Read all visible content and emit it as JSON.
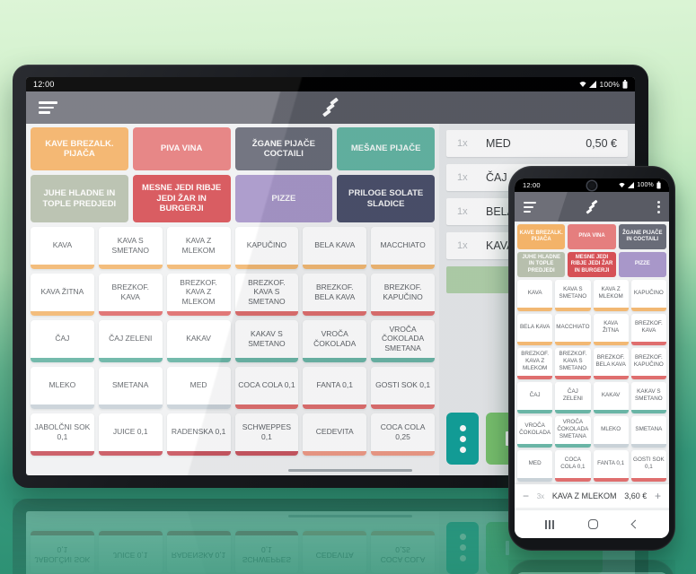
{
  "scene": {
    "background_top": "#d9f4d3",
    "background_bottom": "#2c8f72"
  },
  "colors": {
    "orange": "#f2b873",
    "red": "#df6e6e",
    "darkred": "#c95660",
    "salmon": "#ef9a86",
    "teal": "#6ab5a6",
    "gray": "#c9d2d8"
  },
  "tablet": {
    "status": {
      "time": "12:00",
      "battery": "100%"
    },
    "categories": [
      {
        "label": "KAVE BREZALK. PIJAČA",
        "color": "#f3b369"
      },
      {
        "label": "PIVA VINA",
        "color": "#e57e7e"
      },
      {
        "label": "ŽGANE PIJAČE COCTAILI",
        "color": "#696c78"
      },
      {
        "label": "MEŠANE PIJAČE",
        "color": "#64b6a4"
      },
      {
        "label": "JUHE HLADNE IN TOPLE PREDJEDI",
        "color": "#b7bfad"
      },
      {
        "label": "MESNE JEDI RIBJE JEDI ŽAR IN BURGERJI",
        "color": "#d65156"
      },
      {
        "label": "PIZZE",
        "color": "#a897c9"
      },
      {
        "label": "PRILOGE SOLATE SLADICE",
        "color": "#4b506b"
      }
    ],
    "items": [
      {
        "label": "KAVA",
        "strip": "orange"
      },
      {
        "label": "KAVA S SMETANO",
        "strip": "orange"
      },
      {
        "label": "KAVA Z MLEKOM",
        "strip": "orange"
      },
      {
        "label": "KAPUČINO",
        "strip": "orange"
      },
      {
        "label": "BELA KAVA",
        "strip": "orange"
      },
      {
        "label": "MACCHIATO",
        "strip": "orange"
      },
      {
        "label": "KAVA ŽITNA",
        "strip": "orange"
      },
      {
        "label": "BREZKOF. KAVA",
        "strip": "red"
      },
      {
        "label": "BREZKOF. KAVA Z MLEKOM",
        "strip": "red"
      },
      {
        "label": "BREZKOF. KAVA S SMETANO",
        "strip": "red"
      },
      {
        "label": "BREZKOF. BELA KAVA",
        "strip": "red"
      },
      {
        "label": "BREZKOF. KAPUČINO",
        "strip": "red"
      },
      {
        "label": "ČAJ",
        "strip": "teal"
      },
      {
        "label": "ČAJ ZELENI",
        "strip": "teal"
      },
      {
        "label": "KAKAV",
        "strip": "teal"
      },
      {
        "label": "KAKAV S SMETANO",
        "strip": "teal"
      },
      {
        "label": "VROČA ČOKOLADA",
        "strip": "teal"
      },
      {
        "label": "VROČA ČOKOLADA SMETANA",
        "strip": "teal"
      },
      {
        "label": "MLEKO",
        "strip": "gray"
      },
      {
        "label": "SMETANA",
        "strip": "gray"
      },
      {
        "label": "MED",
        "strip": "gray"
      },
      {
        "label": "COCA COLA 0,1",
        "strip": "red"
      },
      {
        "label": "FANTA 0,1",
        "strip": "red"
      },
      {
        "label": "GOSTI SOK 0,1",
        "strip": "red"
      },
      {
        "label": "JABOLČNI SOK 0,1",
        "strip": "darkred"
      },
      {
        "label": "JUICE 0,1",
        "strip": "darkred"
      },
      {
        "label": "RADENSKA 0,1",
        "strip": "darkred"
      },
      {
        "label": "SCHWEPPES 0,1",
        "strip": "darkred"
      },
      {
        "label": "CEDEVITA",
        "strip": "salmon"
      },
      {
        "label": "COCA COLA 0,25",
        "strip": "salmon"
      }
    ],
    "order": {
      "rows": [
        {
          "qty": "1x",
          "name": "MED",
          "price": "0,50 €",
          "highlight": false
        },
        {
          "qty": "1x",
          "name": "ČAJ",
          "price": "",
          "highlight": false
        },
        {
          "qty": "1x",
          "name": "BELA",
          "price": "",
          "highlight": false
        },
        {
          "qty": "1x",
          "name": "KAVA",
          "price": "",
          "highlight": false
        },
        {
          "qty": "",
          "name": "",
          "price": "",
          "highlight": true
        }
      ],
      "highlight_color": "#b2d2ab"
    },
    "actions": {
      "more_color": "#12a29b",
      "pay_color": "#7ac46f"
    }
  },
  "phone": {
    "status": {
      "time": "12:00",
      "battery": "100%"
    },
    "categories": [
      {
        "label": "KAVE BREZALK. PIJAČA",
        "color": "#f3b369"
      },
      {
        "label": "PIVA VINA",
        "color": "#e57e7e"
      },
      {
        "label": "ŽGANE PIJAČE IN COCTAILI",
        "color": "#696c78"
      },
      {
        "label": "JUHE HLADNE IN TOPLE PREDJEDI",
        "color": "#b7bfad"
      },
      {
        "label": "MESNE JEDI RIBJE JEDI ŽAR IN BURGERJI",
        "color": "#d65156"
      },
      {
        "label": "PIZZE",
        "color": "#a897c9"
      }
    ],
    "items": [
      {
        "label": "KAVA",
        "strip": "orange"
      },
      {
        "label": "KAVA S SMETANO",
        "strip": "orange"
      },
      {
        "label": "KAVA Z MLEKOM",
        "strip": "orange"
      },
      {
        "label": "KAPUČINO",
        "strip": "orange"
      },
      {
        "label": "BELA KAVA",
        "strip": "orange"
      },
      {
        "label": "MACCHIATO",
        "strip": "orange"
      },
      {
        "label": "KAVA ŽITNA",
        "strip": "orange"
      },
      {
        "label": "BREZKOF. KAVA",
        "strip": "red"
      },
      {
        "label": "BREZKOF. KAVA Z MLEKOM",
        "strip": "red"
      },
      {
        "label": "BREZKOF. KAVA S SMETANO",
        "strip": "red"
      },
      {
        "label": "BREZKOF. BELA KAVA",
        "strip": "red"
      },
      {
        "label": "BREZKOF. KAPUČINO",
        "strip": "red"
      },
      {
        "label": "ČAJ",
        "strip": "teal"
      },
      {
        "label": "ČAJ ZELENI",
        "strip": "teal"
      },
      {
        "label": "KAKAV",
        "strip": "teal"
      },
      {
        "label": "KAKAV S SMETANO",
        "strip": "teal"
      },
      {
        "label": "VROČA ČOKOLADA",
        "strip": "teal"
      },
      {
        "label": "VROČA ČOKOLADA SMETANA",
        "strip": "teal"
      },
      {
        "label": "MLEKO",
        "strip": "gray"
      },
      {
        "label": "SMETANA",
        "strip": "gray"
      },
      {
        "label": "MED",
        "strip": "gray"
      },
      {
        "label": "COCA COLA 0,1",
        "strip": "red"
      },
      {
        "label": "FANTA 0,1",
        "strip": "red"
      },
      {
        "label": "GOSTI SOK 0,1",
        "strip": "red"
      }
    ],
    "bottom_bar": {
      "minus": "−",
      "qty": "3x",
      "name": "KAVA Z MLEKOM",
      "price": "3,60 €",
      "plus": "+"
    }
  }
}
